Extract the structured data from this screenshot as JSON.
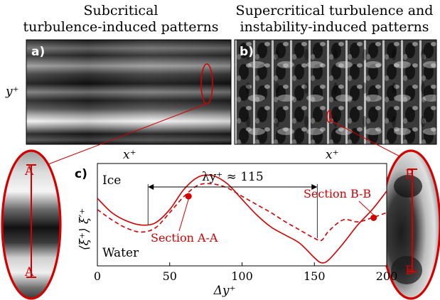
{
  "titles": {
    "left_line1": "Subcritical",
    "left_line2": "turbulence-induced patterns",
    "right_line1": "Supercritical turbulence and",
    "right_line2": "instability-induced patterns"
  },
  "panels": {
    "a": {
      "letter": "a)",
      "ylabel": "y⁺",
      "xlabel": "x⁺"
    },
    "b": {
      "letter": "b)",
      "xlabel": "x⁺"
    },
    "c": {
      "letter": "c)"
    }
  },
  "insets": {
    "left": {
      "top_label": "A",
      "bottom_label": "A"
    },
    "right": {
      "top_label": "B",
      "bottom_label": "B"
    }
  },
  "colors": {
    "accent": "#d40000",
    "axis": "#000000"
  },
  "chart_data": {
    "type": "line",
    "ylabel": "⟨ξ⁺⟩ ξ′⁺",
    "xlabel": "Δy⁺",
    "xlim": [
      0,
      200
    ],
    "ylim": [
      0,
      1
    ],
    "xticks": [
      0,
      50,
      100,
      150,
      200
    ],
    "top_text": "Ice",
    "bottom_text": "Water",
    "annotation": {
      "text": "λy⁺ ≈ 115",
      "x_start": 35,
      "x_end": 152
    },
    "series": [
      {
        "name": "Section A-A",
        "style": "solid",
        "x": [
          0,
          10,
          20,
          30,
          40,
          50,
          60,
          70,
          80,
          90,
          100,
          110,
          120,
          130,
          140,
          150,
          155,
          160,
          170,
          180,
          190,
          200
        ],
        "y": [
          0.66,
          0.52,
          0.44,
          0.4,
          0.42,
          0.55,
          0.75,
          0.87,
          0.88,
          0.8,
          0.65,
          0.5,
          0.38,
          0.3,
          0.22,
          0.08,
          0.03,
          0.06,
          0.22,
          0.4,
          0.55,
          0.73
        ]
      },
      {
        "name": "Section B-B",
        "style": "dashed",
        "x": [
          0,
          10,
          20,
          30,
          40,
          50,
          60,
          70,
          80,
          90,
          100,
          110,
          120,
          130,
          140,
          150,
          155,
          160,
          170,
          180,
          190,
          200
        ],
        "y": [
          0.55,
          0.45,
          0.37,
          0.33,
          0.37,
          0.52,
          0.68,
          0.79,
          0.8,
          0.76,
          0.68,
          0.6,
          0.52,
          0.43,
          0.35,
          0.27,
          0.25,
          0.34,
          0.45,
          0.43,
          0.47,
          0.52
        ]
      }
    ],
    "labels": [
      {
        "text": "Section A-A",
        "marker_x": 63,
        "marker_y": 0.68
      },
      {
        "text": "Section B-B",
        "marker_x": 191,
        "marker_y": 0.47
      }
    ]
  }
}
